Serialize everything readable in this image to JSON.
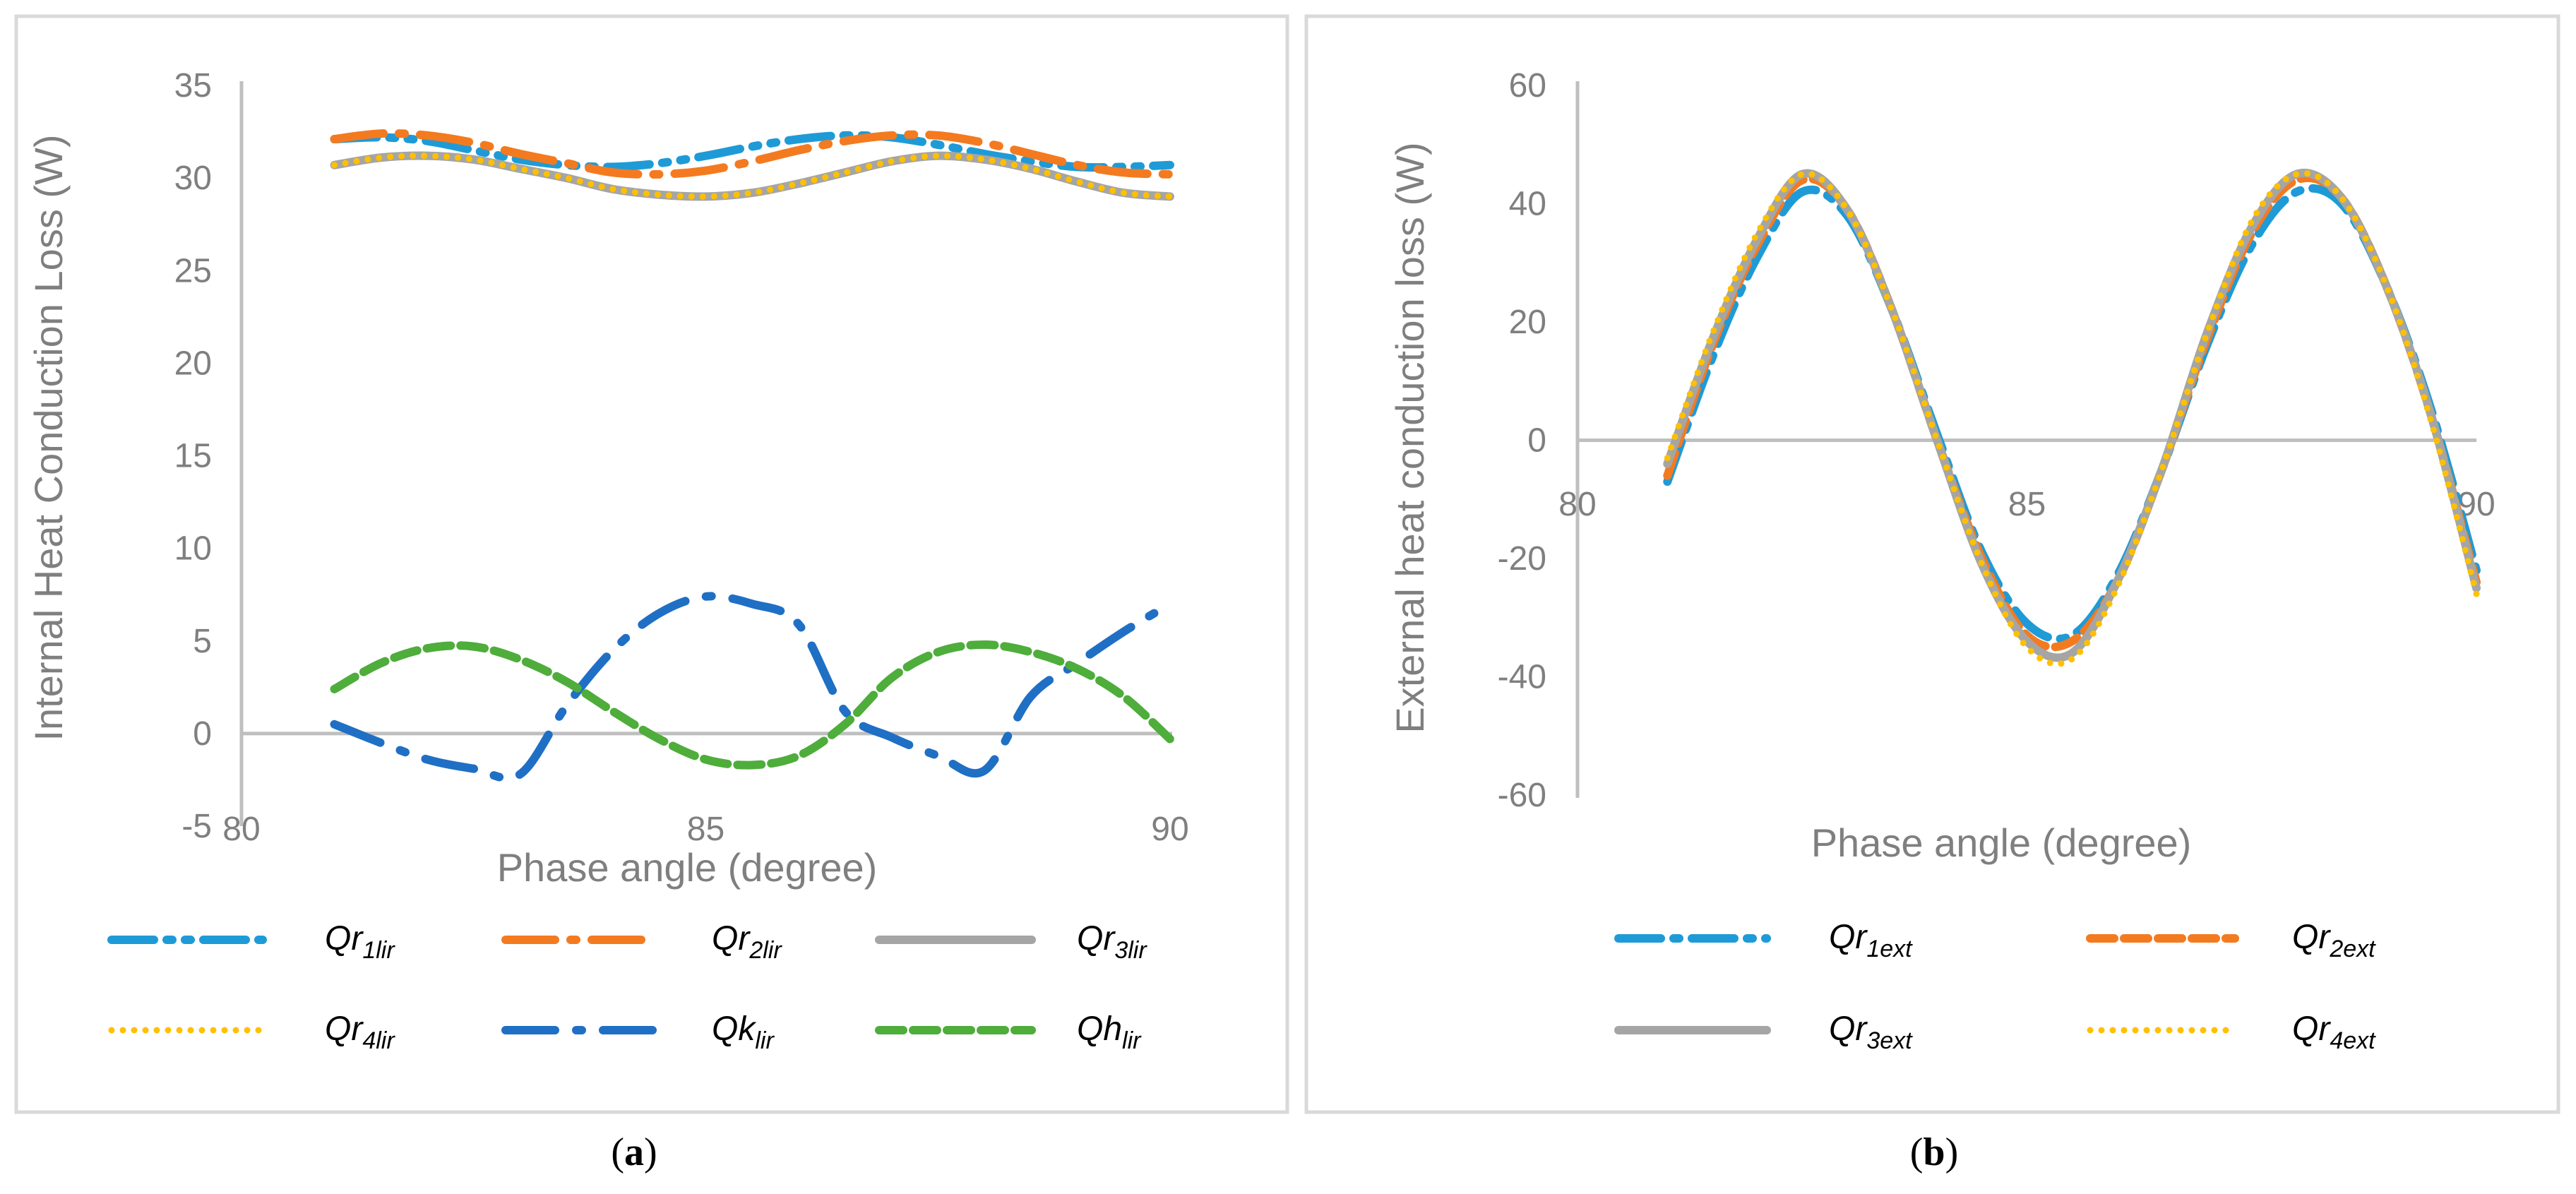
{
  "chart_data": [
    {
      "type": "line",
      "panel_label": {
        "open": "(",
        "letter": "a",
        "close": ")"
      },
      "xlabel": "Phase angle (degree)",
      "ylabel": "Internal Heat Conduction Loss (W)",
      "xlim": [
        80,
        90
      ],
      "ylim": [
        -5,
        35
      ],
      "xticks": [
        "80",
        "85",
        "90"
      ],
      "yticks": [
        "-5",
        "0",
        "5",
        "10",
        "15",
        "20",
        "25",
        "30",
        "35"
      ],
      "grid": false,
      "legend_position": "bottom",
      "x": [
        81,
        81.5,
        82,
        82.5,
        83,
        83.5,
        84,
        84.5,
        85,
        85.5,
        86,
        86.5,
        87,
        87.5,
        88,
        88.5,
        89,
        89.5,
        90
      ],
      "series": [
        {
          "name": "Qr",
          "sub": "1lir",
          "color": "#1E9BD7",
          "dash": "60 18 8 18 8 18",
          "values": [
            32.1,
            32.2,
            32.0,
            31.5,
            31.0,
            30.7,
            30.6,
            30.8,
            31.2,
            31.7,
            32.1,
            32.3,
            32.2,
            31.8,
            31.3,
            30.9,
            30.6,
            30.6,
            30.7
          ]
        },
        {
          "name": "Qr",
          "sub": "2lir",
          "color": "#F47A20",
          "dash": "70 22 8 22",
          "values": [
            32.1,
            32.4,
            32.3,
            31.9,
            31.3,
            30.8,
            30.3,
            30.2,
            30.4,
            30.9,
            31.5,
            32.0,
            32.3,
            32.3,
            31.9,
            31.3,
            30.7,
            30.3,
            30.2
          ]
        },
        {
          "name": "Qr",
          "sub": "3lir",
          "color": "#A5A5A5",
          "dash": "",
          "values": [
            30.7,
            31.1,
            31.2,
            31.0,
            30.5,
            30.0,
            29.4,
            29.1,
            29.0,
            29.2,
            29.7,
            30.3,
            30.9,
            31.2,
            31.0,
            30.5,
            29.8,
            29.2,
            29.0
          ]
        },
        {
          "name": "Qr",
          "sub": "4lir",
          "color": "#FFC000",
          "dash": "0 16",
          "values": [
            30.7,
            31.1,
            31.2,
            31.0,
            30.5,
            30.0,
            29.4,
            29.1,
            29.0,
            29.2,
            29.7,
            30.3,
            30.9,
            31.2,
            31.0,
            30.5,
            29.8,
            29.2,
            29.0
          ]
        },
        {
          "name": "Qk",
          "sub": "lir",
          "color": "#1F6FC5",
          "dash": "70 30 8 30",
          "values": [
            0.5,
            -0.5,
            -1.4,
            -1.9,
            -2.2,
            1.5,
            4.5,
            6.5,
            7.4,
            7.0,
            5.9,
            1.2,
            -0.2,
            -1.2,
            -2.0,
            2.0,
            3.8,
            5.5,
            7.0
          ]
        },
        {
          "name": "Qh",
          "sub": "lir",
          "color": "#4EAD3B",
          "dash": "34 14",
          "values": [
            2.4,
            3.8,
            4.6,
            4.7,
            4.0,
            2.8,
            1.2,
            -0.3,
            -1.4,
            -1.7,
            -1.2,
            0.5,
            3.0,
            4.4,
            4.8,
            4.4,
            3.5,
            2.0,
            -0.3
          ]
        }
      ]
    },
    {
      "type": "line",
      "panel_label": {
        "open": "(",
        "letter": "b",
        "close": ")"
      },
      "xlabel": "Phase angle (degree)",
      "ylabel": "External heat conduction loss (W)",
      "xlim": [
        80,
        90
      ],
      "ylim": [
        -60,
        60
      ],
      "xticks": [
        "80",
        "85",
        "90"
      ],
      "yticks": [
        "-60",
        "-40",
        "-20",
        "0",
        "20",
        "40",
        "60"
      ],
      "grid": false,
      "legend_position": "bottom",
      "x": [
        81,
        81.5,
        82,
        82.5,
        83,
        83.5,
        84,
        84.5,
        85,
        85.5,
        86,
        86.5,
        87,
        87.5,
        88,
        88.5,
        89,
        89.5,
        90
      ],
      "series": [
        {
          "name": "Qr",
          "sub": "1ext",
          "color": "#1E9BD7",
          "dash": "60 18 8 18",
          "values": [
            -7,
            14,
            31,
            42,
            38,
            22,
            1,
            -19,
            -31,
            -33,
            -23,
            -5,
            16,
            33,
            42,
            40,
            26,
            5,
            -22
          ]
        },
        {
          "name": "Qr",
          "sub": "2ext",
          "color": "#F47A20",
          "dash": "34 14",
          "values": [
            -6,
            16,
            33,
            44,
            39,
            22,
            0,
            -20,
            -33,
            -34,
            -24,
            -5,
            17,
            35,
            44,
            41,
            26,
            4,
            -24
          ]
        },
        {
          "name": "Qr",
          "sub": "3ext",
          "color": "#A5A5A5",
          "dash": "",
          "values": [
            -4,
            17,
            34,
            45,
            39,
            22,
            0,
            -21,
            -34,
            -36,
            -24,
            -5,
            18,
            36,
            45,
            41,
            26,
            4,
            -25
          ]
        },
        {
          "name": "Qr",
          "sub": "4ext",
          "color": "#FFC000",
          "dash": "0 16",
          "values": [
            -3,
            18,
            35,
            45,
            39,
            22,
            0,
            -21,
            -35,
            -37,
            -25,
            -5,
            18,
            37,
            45,
            41,
            26,
            3,
            -26
          ]
        }
      ]
    }
  ]
}
